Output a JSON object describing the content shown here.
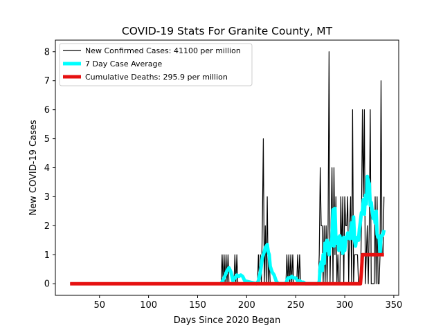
{
  "chart_data": {
    "type": "line",
    "title": "COVID-19 Stats For Granite County, MT",
    "xlabel": "Days Since 2020 Began",
    "ylabel": "New COVID-19 Cases",
    "xlim": [
      5,
      355
    ],
    "ylim": [
      -0.4,
      8.4
    ],
    "xticks": [
      50,
      100,
      150,
      200,
      250,
      300,
      350
    ],
    "yticks": [
      0,
      1,
      2,
      3,
      4,
      5,
      6,
      7,
      8
    ],
    "grid": false,
    "legend_position": "top-left",
    "series": [
      {
        "name": "New Confirmed Cases: 41100 per million",
        "color": "#000000",
        "x": [
          20,
          174,
          175,
          176,
          177,
          178,
          179,
          180,
          181,
          182,
          183,
          184,
          185,
          186,
          187,
          188,
          189,
          190,
          191,
          192,
          193,
          194,
          195,
          196,
          197,
          198,
          199,
          210,
          211,
          212,
          213,
          214,
          215,
          216,
          217,
          218,
          219,
          220,
          221,
          222,
          223,
          224,
          225,
          226,
          227,
          228,
          229,
          230,
          231,
          240,
          241,
          242,
          243,
          244,
          245,
          246,
          247,
          248,
          249,
          250,
          251,
          252,
          253,
          254,
          255,
          256,
          257,
          258,
          259,
          260,
          261,
          262,
          273,
          274,
          275,
          276,
          277,
          278,
          279,
          280,
          281,
          282,
          283,
          284,
          285,
          286,
          287,
          288,
          289,
          290,
          291,
          292,
          293,
          294,
          295,
          296,
          297,
          298,
          299,
          300,
          301,
          302,
          303,
          304,
          305,
          306,
          307,
          308,
          309,
          310,
          311,
          312,
          313,
          314,
          315,
          316,
          317,
          318,
          319,
          320,
          321,
          322,
          323,
          324,
          325,
          326,
          327,
          328,
          329,
          330,
          331,
          332,
          333,
          334,
          335,
          336,
          337,
          338,
          339,
          340
        ],
        "y": [
          0,
          0,
          1,
          0,
          1,
          0,
          1,
          0,
          1,
          0,
          0,
          0,
          0,
          0,
          0,
          1,
          0,
          1,
          0,
          0,
          0,
          0,
          0,
          0,
          0,
          0,
          0,
          0,
          0,
          1,
          0,
          1,
          0,
          2,
          5,
          0,
          2,
          0,
          3,
          0,
          1,
          0,
          0,
          0,
          0,
          0,
          0,
          0,
          0,
          0,
          1,
          0,
          1,
          0,
          1,
          0,
          1,
          0,
          0,
          0,
          0,
          1,
          0,
          1,
          0,
          0,
          0,
          0,
          0,
          0,
          0,
          0,
          0,
          1,
          4,
          2,
          2,
          0,
          2,
          0,
          2,
          0,
          2,
          8,
          0,
          2,
          4,
          0,
          4,
          1,
          3,
          0,
          1,
          0,
          0,
          3,
          1,
          3,
          0,
          3,
          2,
          2,
          3,
          0,
          2,
          3,
          0,
          6,
          0,
          1,
          1,
          1,
          1,
          0,
          0,
          0,
          2,
          6,
          3,
          6,
          0,
          1,
          2,
          0,
          2,
          6,
          0,
          0,
          0,
          0,
          3,
          0,
          3,
          0,
          0,
          1,
          7,
          1,
          1,
          3
        ]
      },
      {
        "name": "7 Day Case Average",
        "color": "#00FFFF",
        "x": [
          174,
          177,
          180,
          182,
          184,
          186,
          188,
          190,
          192,
          194,
          196,
          198,
          210,
          212,
          214,
          216,
          218,
          219,
          220,
          221,
          222,
          223,
          224,
          226,
          228,
          230,
          232,
          240,
          242,
          244,
          246,
          248,
          250,
          252,
          254,
          256,
          258,
          260,
          262,
          272,
          274,
          275,
          276,
          277,
          278,
          279,
          280,
          281,
          282,
          283,
          284,
          285,
          286,
          287,
          288,
          289,
          290,
          291,
          292,
          293,
          294,
          295,
          296,
          297,
          298,
          299,
          300,
          301,
          302,
          303,
          304,
          305,
          306,
          307,
          308,
          309,
          310,
          311,
          312,
          313,
          314,
          315,
          316,
          317,
          318,
          319,
          320,
          321,
          322,
          323,
          324,
          325,
          326,
          327,
          328,
          329,
          330,
          331,
          332,
          333,
          334,
          335,
          336,
          337,
          338,
          339,
          340
        ],
        "y": [
          0,
          0.2,
          0.45,
          0.55,
          0.4,
          0.1,
          0.2,
          0.3,
          0.25,
          0.3,
          0.25,
          0.1,
          0,
          0.1,
          0.4,
          0.9,
          1.1,
          1.25,
          1.3,
          1.35,
          1.1,
          1.0,
          0.6,
          0.4,
          0.3,
          0.1,
          0,
          0,
          0.2,
          0.2,
          0.25,
          0.2,
          0.2,
          0.1,
          0.1,
          0.05,
          0.05,
          0,
          0,
          0,
          0.05,
          0.6,
          0.75,
          0.45,
          1.0,
          0.7,
          1.4,
          1.15,
          1.5,
          1.3,
          1.0,
          1.4,
          1.3,
          1.6,
          2.55,
          1.3,
          2.6,
          1.5,
          1.4,
          1.6,
          1.15,
          1.65,
          1.45,
          1.55,
          1.05,
          1.6,
          1.15,
          1.55,
          1.55,
          1.75,
          1.6,
          1.55,
          1.7,
          2.1,
          1.55,
          2.3,
          1.5,
          1.3,
          1.55,
          1.6,
          1.5,
          1.9,
          2.15,
          2.45,
          2.5,
          2.9,
          2.4,
          3.05,
          2.75,
          3.7,
          3.55,
          3.45,
          2.7,
          2.8,
          2.5,
          2.25,
          2.45,
          2.1,
          2.5,
          1.7,
          1.6,
          1.65,
          1.0,
          1.65,
          1.65,
          1.7,
          1.85
        ]
      },
      {
        "name": "Cumulative Deaths: 295.9 per million",
        "color": "#E61010",
        "x": [
          20,
          316,
          317,
          318,
          340
        ],
        "y": [
          0,
          0,
          0.4,
          1,
          1
        ]
      }
    ]
  }
}
